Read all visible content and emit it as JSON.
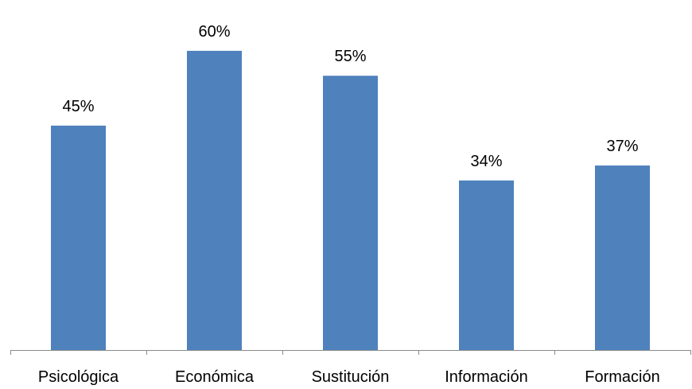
{
  "chart_data": {
    "type": "bar",
    "categories": [
      "Psicológica",
      "Económica",
      "Sustitución",
      "Información",
      "Formación"
    ],
    "values": [
      45,
      60,
      55,
      34,
      37
    ],
    "data_labels": [
      "45%",
      "60%",
      "55%",
      "34%",
      "37%"
    ],
    "unit": "%",
    "ylim": [
      0,
      67
    ],
    "grid": false,
    "legend": "none",
    "colors": {
      "bar": "#4F81BD",
      "axis": "#8C8C8C"
    }
  }
}
